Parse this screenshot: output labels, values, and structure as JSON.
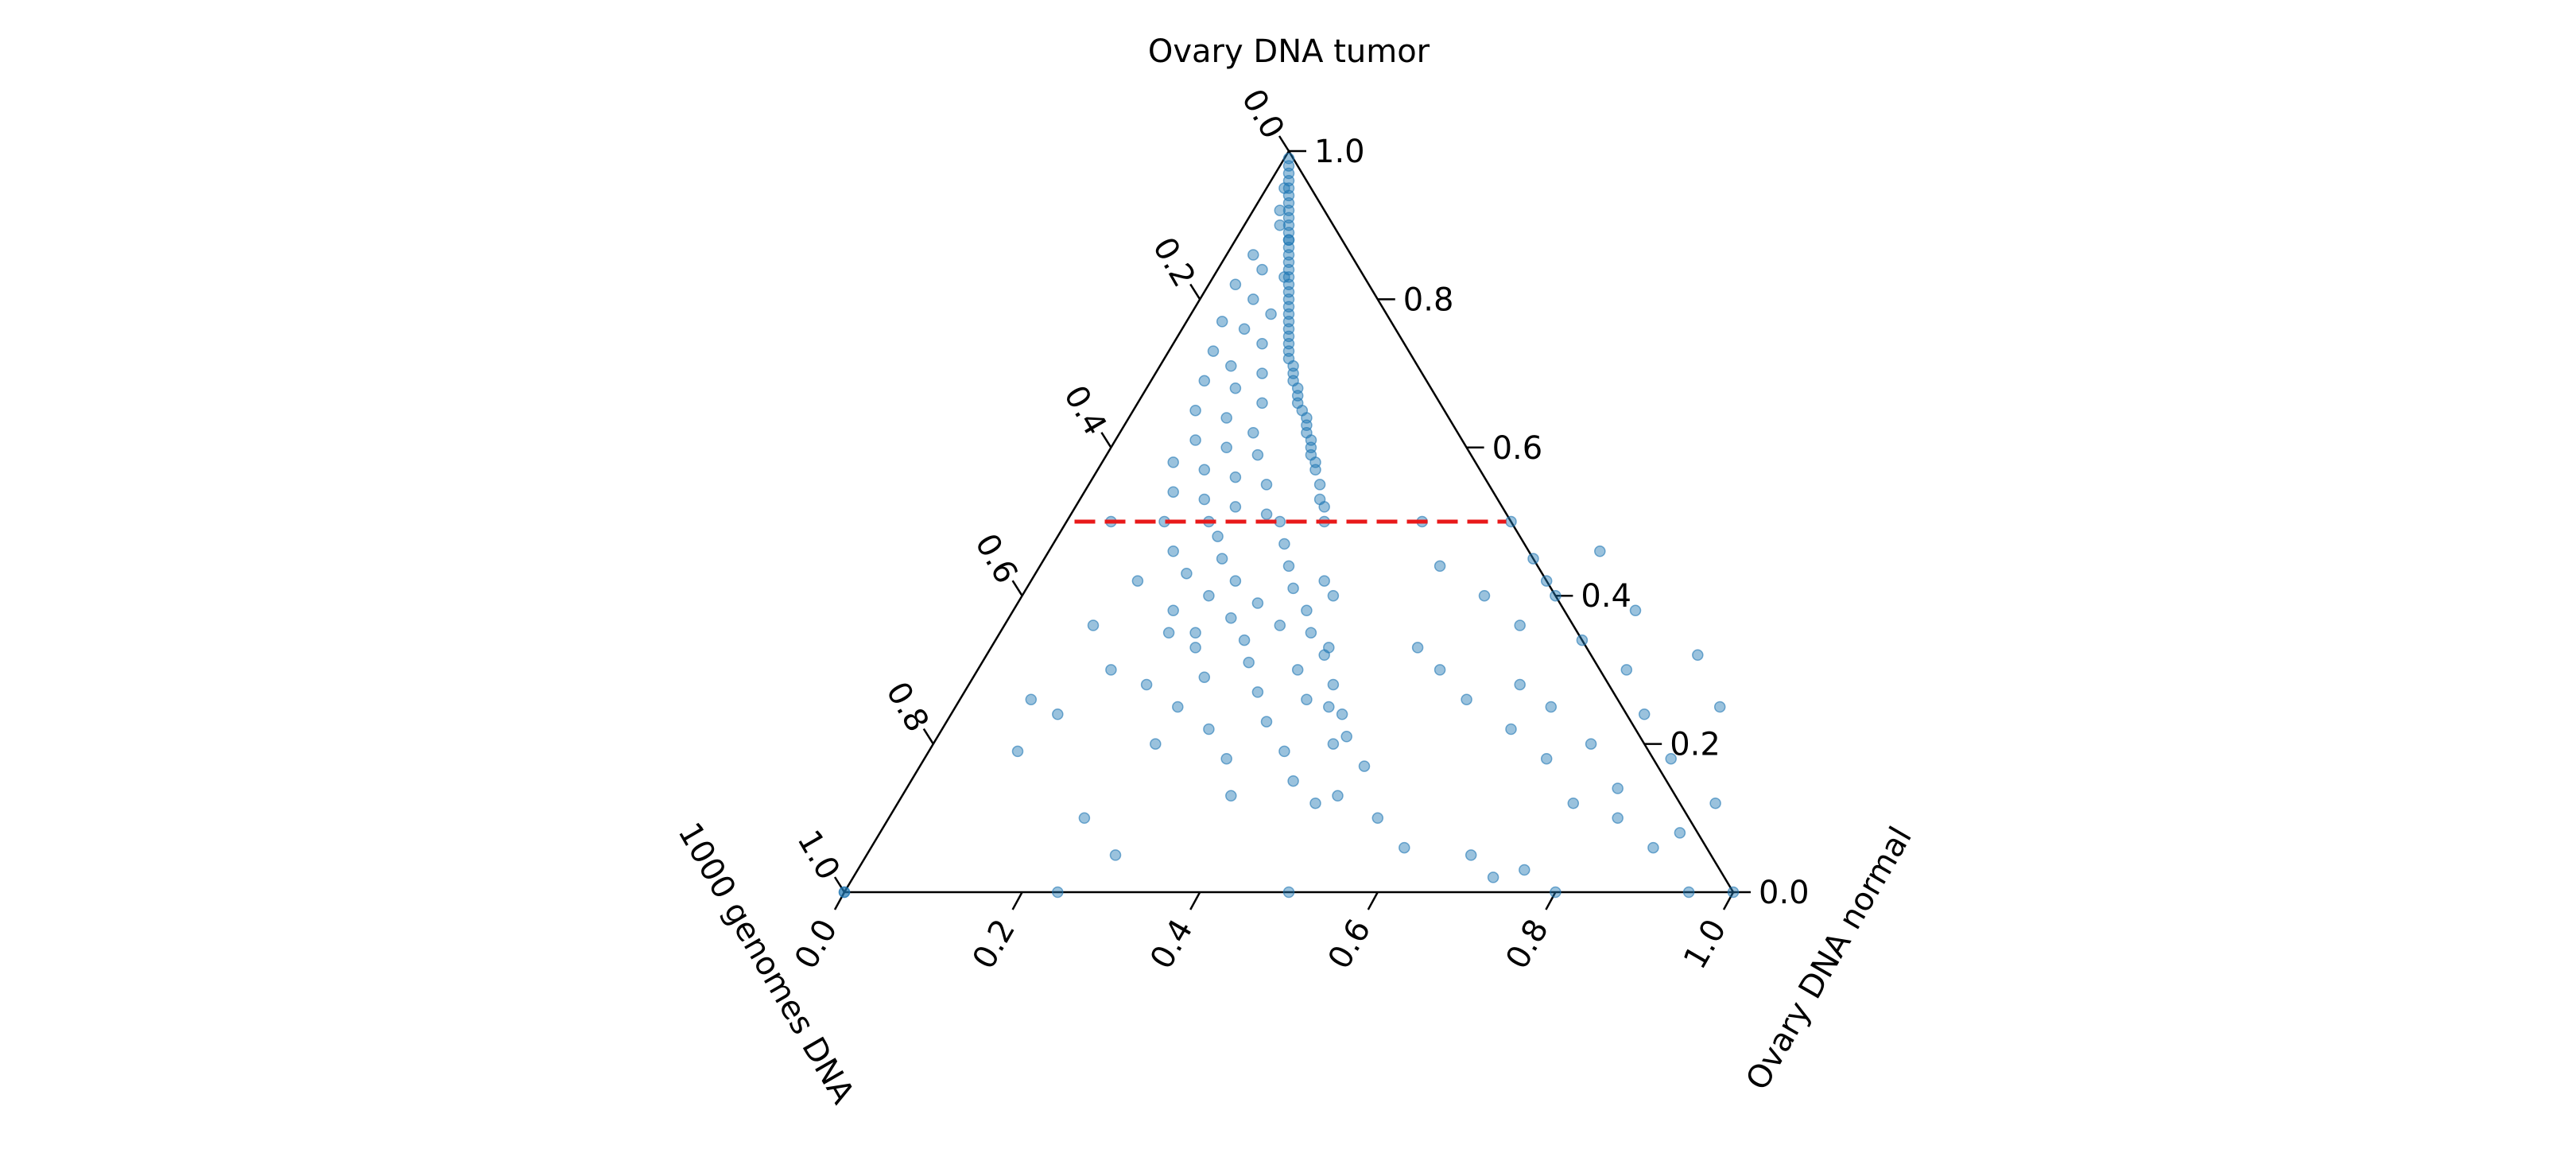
{
  "chart_data": {
    "type": "scatter",
    "subtype": "ternary",
    "axes": {
      "top": {
        "label": "Ovary DNA tumor",
        "ticks": [
          "0.0",
          "0.2",
          "0.4",
          "0.6",
          "0.8",
          "1.0"
        ]
      },
      "right": {
        "label": "Ovary DNA normal",
        "ticks": [
          "0.0",
          "0.2",
          "0.4",
          "0.6",
          "0.8",
          "1.0"
        ]
      },
      "left": {
        "label": "1000 genomes DNA",
        "ticks": [
          "0.0",
          "0.2",
          "0.4",
          "0.6",
          "0.8",
          "1.0"
        ]
      }
    },
    "range": [
      0,
      1
    ],
    "grid": false,
    "legend": "none",
    "point_color": "#1f77b4",
    "point_alpha": 0.45,
    "reference_line": {
      "axis": "tumor",
      "value": 0.5,
      "color": "#e8191a",
      "style": "dashed"
    },
    "series": [
      {
        "values": [
          [
            0.005,
            0.99
          ],
          [
            0.01,
            0.98
          ],
          [
            0.015,
            0.97
          ],
          [
            0.02,
            0.96
          ],
          [
            0.025,
            0.95
          ],
          [
            0.03,
            0.94
          ],
          [
            0.035,
            0.93
          ],
          [
            0.04,
            0.92
          ],
          [
            0.045,
            0.91
          ],
          [
            0.05,
            0.9
          ],
          [
            0.055,
            0.89
          ],
          [
            0.06,
            0.88
          ],
          [
            0.065,
            0.87
          ],
          [
            0.07,
            0.86
          ],
          [
            0.075,
            0.85
          ],
          [
            0.08,
            0.84
          ],
          [
            0.085,
            0.83
          ],
          [
            0.09,
            0.82
          ],
          [
            0.095,
            0.81
          ],
          [
            0.1,
            0.8
          ],
          [
            0.105,
            0.79
          ],
          [
            0.11,
            0.78
          ],
          [
            0.115,
            0.77
          ],
          [
            0.12,
            0.76
          ],
          [
            0.125,
            0.75
          ],
          [
            0.13,
            0.74
          ],
          [
            0.135,
            0.73
          ],
          [
            0.14,
            0.72
          ],
          [
            0.15,
            0.71
          ],
          [
            0.155,
            0.7
          ],
          [
            0.16,
            0.69
          ],
          [
            0.17,
            0.68
          ],
          [
            0.175,
            0.67
          ],
          [
            0.18,
            0.66
          ],
          [
            0.19,
            0.65
          ],
          [
            0.2,
            0.64
          ],
          [
            0.205,
            0.63
          ],
          [
            0.21,
            0.62
          ],
          [
            0.22,
            0.61
          ],
          [
            0.225,
            0.6
          ],
          [
            0.23,
            0.59
          ],
          [
            0.24,
            0.58
          ],
          [
            0.245,
            0.57
          ],
          [
            0.26,
            0.55
          ],
          [
            0.27,
            0.53
          ],
          [
            0.28,
            0.52
          ],
          [
            0.29,
            0.5
          ],
          [
            0.33,
            0.42
          ],
          [
            0.35,
            0.4
          ],
          [
            0.38,
            0.33
          ],
          [
            0.42,
            0.25
          ],
          [
            0.45,
            0.2
          ],
          [
            0.49,
            0.13
          ],
          [
            0.5,
            0.0
          ],
          [
            0.02,
            0.95
          ],
          [
            0.03,
            0.92
          ],
          [
            0.04,
            0.9
          ],
          [
            0.06,
            0.88
          ],
          [
            0.03,
            0.86
          ],
          [
            0.05,
            0.84
          ],
          [
            0.08,
            0.83
          ],
          [
            0.03,
            0.82
          ],
          [
            0.06,
            0.8
          ],
          [
            0.09,
            0.78
          ],
          [
            0.04,
            0.77
          ],
          [
            0.07,
            0.76
          ],
          [
            0.1,
            0.74
          ],
          [
            0.05,
            0.73
          ],
          [
            0.08,
            0.71
          ],
          [
            0.12,
            0.7
          ],
          [
            0.06,
            0.69
          ],
          [
            0.1,
            0.68
          ],
          [
            0.14,
            0.66
          ],
          [
            0.07,
            0.65
          ],
          [
            0.11,
            0.64
          ],
          [
            0.15,
            0.62
          ],
          [
            0.09,
            0.61
          ],
          [
            0.13,
            0.6
          ],
          [
            0.17,
            0.59
          ],
          [
            0.08,
            0.58
          ],
          [
            0.12,
            0.57
          ],
          [
            0.16,
            0.56
          ],
          [
            0.2,
            0.55
          ],
          [
            0.1,
            0.54
          ],
          [
            0.14,
            0.53
          ],
          [
            0.18,
            0.52
          ],
          [
            0.22,
            0.51
          ],
          [
            0.11,
            0.5
          ],
          [
            0.16,
            0.5
          ],
          [
            0.24,
            0.5
          ],
          [
            0.18,
            0.48
          ],
          [
            0.26,
            0.47
          ],
          [
            0.14,
            0.46
          ],
          [
            0.2,
            0.45
          ],
          [
            0.28,
            0.44
          ],
          [
            0.17,
            0.43
          ],
          [
            0.23,
            0.42
          ],
          [
            0.3,
            0.41
          ],
          [
            0.21,
            0.4
          ],
          [
            0.27,
            0.39
          ],
          [
            0.33,
            0.38
          ],
          [
            0.25,
            0.37
          ],
          [
            0.31,
            0.36
          ],
          [
            0.19,
            0.35
          ],
          [
            0.35,
            0.35
          ],
          [
            0.28,
            0.34
          ],
          [
            0.23,
            0.33
          ],
          [
            0.38,
            0.32
          ],
          [
            0.3,
            0.31
          ],
          [
            0.36,
            0.3
          ],
          [
            0.26,
            0.29
          ],
          [
            0.41,
            0.28
          ],
          [
            0.33,
            0.27
          ],
          [
            0.39,
            0.26
          ],
          [
            0.44,
            0.24
          ],
          [
            0.36,
            0.23
          ],
          [
            0.3,
            0.22
          ],
          [
            0.46,
            0.21
          ],
          [
            0.4,
            0.19
          ],
          [
            0.34,
            0.18
          ],
          [
            0.5,
            0.17
          ],
          [
            0.43,
            0.15
          ],
          [
            0.37,
            0.13
          ],
          [
            0.47,
            0.12
          ],
          [
            0.55,
            0.1
          ],
          [
            0.6,
            0.06
          ],
          [
            0.68,
            0.05
          ],
          [
            0.72,
            0.02
          ],
          [
            0.4,
            0.5
          ],
          [
            0.45,
            0.44
          ],
          [
            0.52,
            0.4
          ],
          [
            0.58,
            0.36
          ],
          [
            0.48,
            0.33
          ],
          [
            0.62,
            0.28
          ],
          [
            0.67,
            0.25
          ],
          [
            0.74,
            0.2
          ],
          [
            0.8,
            0.14
          ],
          [
            0.88,
            0.06
          ],
          [
            0.95,
            0.0
          ],
          [
            0.5,
            0.5
          ],
          [
            0.55,
            0.45
          ],
          [
            0.6,
            0.4
          ],
          [
            0.52,
            0.3
          ],
          [
            0.57,
            0.26
          ],
          [
            0.64,
            0.22
          ],
          [
            0.7,
            0.18
          ],
          [
            0.76,
            0.12
          ],
          [
            0.82,
            0.1
          ],
          [
            0.9,
            0.08
          ],
          [
            0.58,
            0.42
          ],
          [
            0.66,
            0.34
          ],
          [
            0.73,
            0.3
          ],
          [
            0.78,
            0.24
          ],
          [
            0.84,
            0.18
          ],
          [
            0.92,
            0.12
          ],
          [
            0.86,
            0.25
          ],
          [
            0.8,
            0.32
          ],
          [
            0.7,
            0.38
          ],
          [
            0.62,
            0.46
          ],
          [
            0.75,
            0.03
          ],
          [
            0.8,
            0.0
          ],
          [
            1.0,
            0.0
          ],
          [
            0.0,
            0.0
          ],
          [
            0.0,
            0.0
          ],
          [
            0.25,
            0.25
          ],
          [
            0.25,
            0.2
          ],
          [
            0.22,
            0.1
          ],
          [
            0.28,
            0.05
          ],
          [
            0.24,
            0.0
          ],
          [
            0.18,
            0.38
          ],
          [
            0.22,
            0.35
          ],
          [
            0.12,
            0.42
          ],
          [
            0.05,
            0.5
          ],
          [
            0.1,
            0.36
          ],
          [
            0.12,
            0.24
          ],
          [
            0.15,
            0.3
          ],
          [
            0.2,
            0.28
          ],
          [
            0.08,
            0.26
          ],
          [
            0.1,
            0.19
          ]
        ]
      }
    ]
  }
}
